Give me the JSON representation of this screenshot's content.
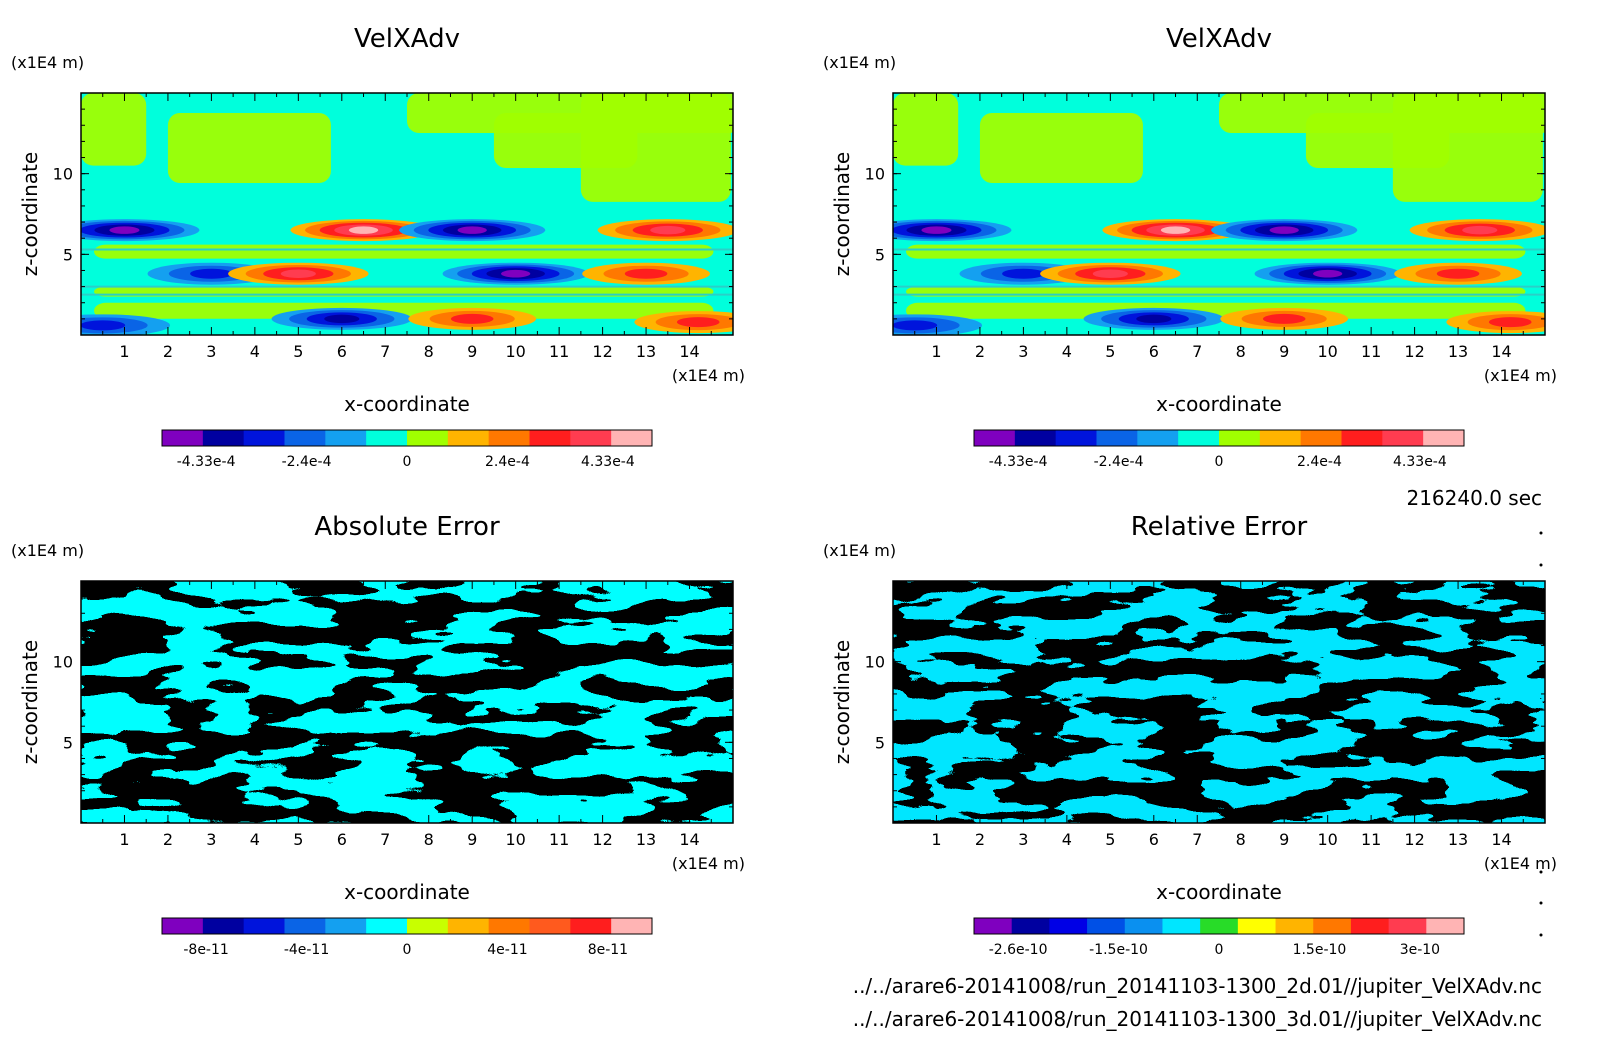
{
  "time_label": "216240.0 sec",
  "files": [
    "../../arare6-20141008/run_20141103-1300_2d.01//jupiter_VelXAdv.nc",
    "../../arare6-20141008/run_20141103-1300_3d.01//jupiter_VelXAdv.nc"
  ],
  "chart_data": [
    {
      "type": "heatmap",
      "title": "VelXAdv",
      "xlabel": "x-coordinate",
      "ylabel": "z-coordinate",
      "x_unit": "(x1E4 m)",
      "y_unit": "(x1E4 m)",
      "xlim": [
        0,
        15
      ],
      "ylim": [
        0,
        15
      ],
      "x_ticks": [
        "1",
        "2",
        "3",
        "4",
        "5",
        "6",
        "7",
        "8",
        "9",
        "10",
        "11",
        "12",
        "13",
        "14"
      ],
      "y_ticks": [
        "5",
        "10"
      ],
      "colorbar": {
        "colors": [
          "#7f00bf",
          "#0000a0",
          "#0014dc",
          "#0a64e6",
          "#14a0f0",
          "#00ffdc",
          "#a0ff00",
          "#ffb400",
          "#ff7800",
          "#ff1e1e",
          "#ff3c50",
          "#ffb4b4"
        ],
        "tick_labels": [
          "-4.33e-4",
          "-2.4e-4",
          "0",
          "2.4e-4",
          "4.33e-4"
        ]
      },
      "features": [
        {
          "x": 1.0,
          "z": 6.5,
          "value": -0.000433
        },
        {
          "x": 6.5,
          "z": 6.5,
          "value": 0.0004
        },
        {
          "x": 9.0,
          "z": 6.5,
          "value": -0.0004
        },
        {
          "x": 13.5,
          "z": 6.5,
          "value": 0.00035
        },
        {
          "x": 3.0,
          "z": 3.8,
          "value": -0.00024
        },
        {
          "x": 5.0,
          "z": 3.8,
          "value": 0.00035
        },
        {
          "x": 10.0,
          "z": 3.8,
          "value": -0.0004
        },
        {
          "x": 13.0,
          "z": 3.8,
          "value": 0.00024
        },
        {
          "x": 0.5,
          "z": 0.6,
          "value": -0.0003
        },
        {
          "x": 6.0,
          "z": 1.0,
          "value": -0.00035
        },
        {
          "x": 9.0,
          "z": 1.0,
          "value": 0.00024
        },
        {
          "x": 14.2,
          "z": 0.8,
          "value": 0.00024
        }
      ]
    },
    {
      "type": "heatmap",
      "title": "VelXAdv",
      "xlabel": "x-coordinate",
      "ylabel": "z-coordinate",
      "x_unit": "(x1E4 m)",
      "y_unit": "(x1E4 m)",
      "xlim": [
        0,
        15
      ],
      "ylim": [
        0,
        15
      ],
      "x_ticks": [
        "1",
        "2",
        "3",
        "4",
        "5",
        "6",
        "7",
        "8",
        "9",
        "10",
        "11",
        "12",
        "13",
        "14"
      ],
      "y_ticks": [
        "5",
        "10"
      ],
      "colorbar": {
        "colors": [
          "#7f00bf",
          "#0000a0",
          "#0014dc",
          "#0a64e6",
          "#14a0f0",
          "#00ffdc",
          "#a0ff00",
          "#ffb400",
          "#ff7800",
          "#ff1e1e",
          "#ff3c50",
          "#ffb4b4"
        ],
        "tick_labels": [
          "-4.33e-4",
          "-2.4e-4",
          "0",
          "2.4e-4",
          "4.33e-4"
        ]
      },
      "features": [
        {
          "x": 1.0,
          "z": 6.5,
          "value": -0.000433
        },
        {
          "x": 6.5,
          "z": 6.5,
          "value": 0.0004
        },
        {
          "x": 9.0,
          "z": 6.5,
          "value": -0.0004
        },
        {
          "x": 13.5,
          "z": 6.5,
          "value": 0.00035
        },
        {
          "x": 3.0,
          "z": 3.8,
          "value": -0.00024
        },
        {
          "x": 5.0,
          "z": 3.8,
          "value": 0.00035
        },
        {
          "x": 10.0,
          "z": 3.8,
          "value": -0.0004
        },
        {
          "x": 13.0,
          "z": 3.8,
          "value": 0.00024
        },
        {
          "x": 0.5,
          "z": 0.6,
          "value": -0.0003
        },
        {
          "x": 6.0,
          "z": 1.0,
          "value": -0.00035
        },
        {
          "x": 9.0,
          "z": 1.0,
          "value": 0.00024
        },
        {
          "x": 14.2,
          "z": 0.8,
          "value": 0.00024
        }
      ]
    },
    {
      "type": "heatmap",
      "title": "Absolute Error",
      "xlabel": "x-coordinate",
      "ylabel": "z-coordinate",
      "x_unit": "(x1E4 m)",
      "y_unit": "(x1E4 m)",
      "xlim": [
        0,
        15
      ],
      "ylim": [
        0,
        15
      ],
      "x_ticks": [
        "1",
        "2",
        "3",
        "4",
        "5",
        "6",
        "7",
        "8",
        "9",
        "10",
        "11",
        "12",
        "13",
        "14"
      ],
      "y_ticks": [
        "5",
        "10"
      ],
      "colorbar": {
        "colors": [
          "#7f00bf",
          "#0000a0",
          "#0014dc",
          "#0a64e6",
          "#14a0f0",
          "#00ffff",
          "#c8ff00",
          "#ffb400",
          "#ff7800",
          "#ff5a1e",
          "#ff1e1e",
          "#ffb4b4"
        ],
        "tick_labels": [
          "-8e-11",
          "-4e-11",
          "0",
          "4e-11",
          "8e-11"
        ]
      },
      "pattern": "noise alternating between slightly negative (cyan) and slightly positive (yellow-green) values"
    },
    {
      "type": "heatmap",
      "title": "Relative Error",
      "xlabel": "x-coordinate",
      "ylabel": "z-coordinate",
      "x_unit": "(x1E4 m)",
      "y_unit": "(x1E4 m)",
      "xlim": [
        0,
        15
      ],
      "ylim": [
        0,
        15
      ],
      "x_ticks": [
        "1",
        "2",
        "3",
        "4",
        "5",
        "6",
        "7",
        "8",
        "9",
        "10",
        "11",
        "12",
        "13",
        "14"
      ],
      "y_ticks": [
        "5",
        "10"
      ],
      "colorbar": {
        "colors": [
          "#7f00bf",
          "#0000a0",
          "#0000e6",
          "#0050e6",
          "#0a90f0",
          "#00e6ff",
          "#28dc28",
          "#ffff00",
          "#ffb400",
          "#ff7800",
          "#ff1e1e",
          "#ff3c50",
          "#ffb4b4"
        ],
        "tick_labels": [
          "-2.6e-10",
          "-1.5e-10",
          "0",
          "1.5e-10",
          "3e-10"
        ]
      },
      "pattern": "noise alternating between slightly negative (cyan) and slightly positive (green) values"
    }
  ]
}
